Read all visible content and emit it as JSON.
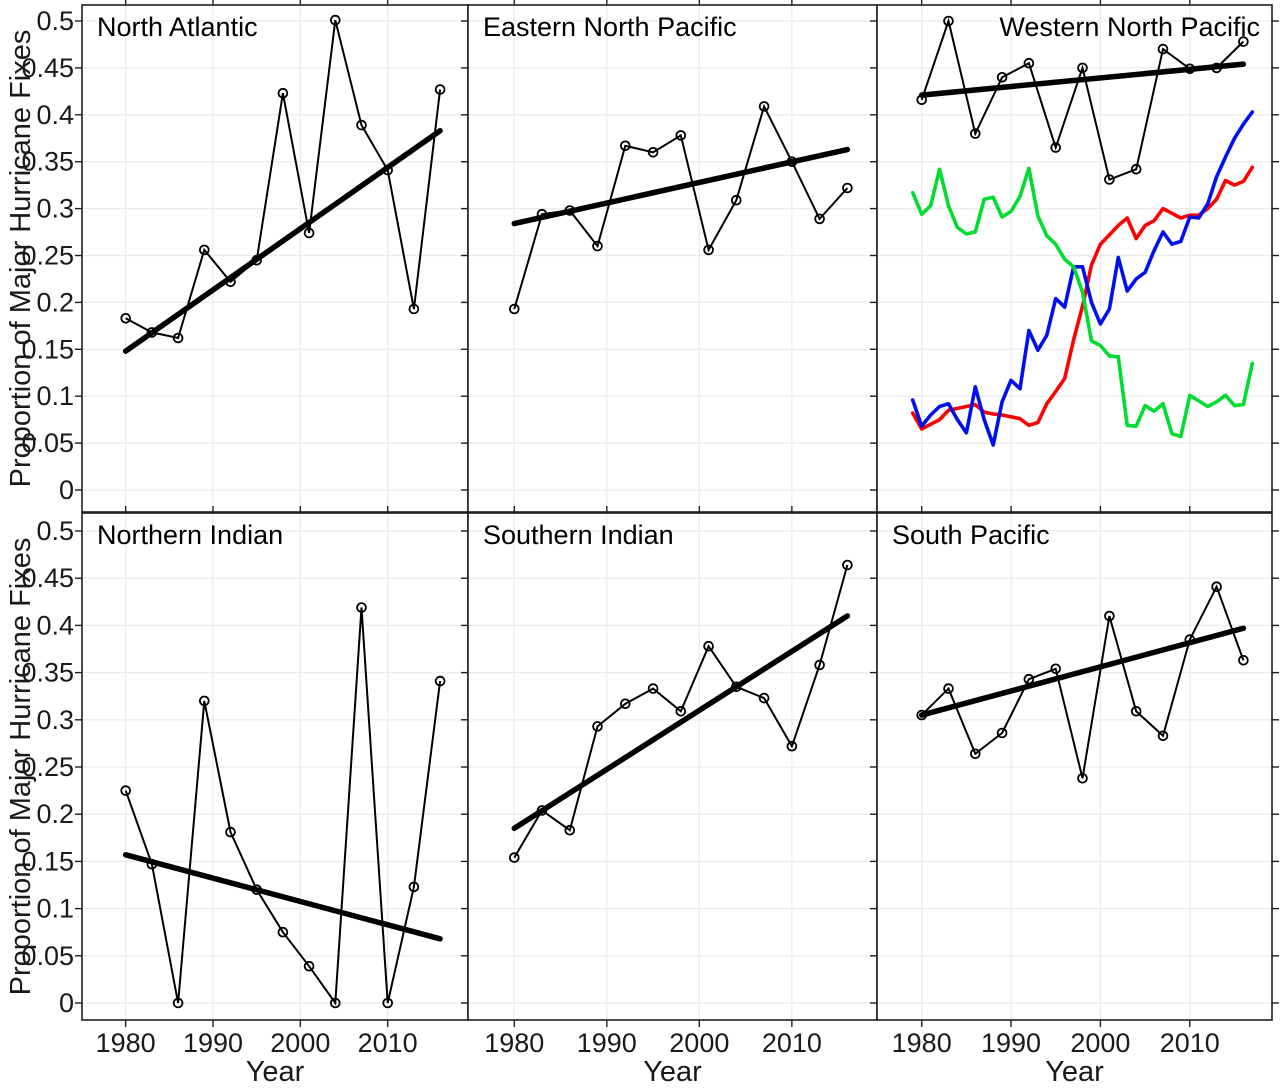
{
  "figure": {
    "background": "#ffffff"
  },
  "colors": {
    "grid": "#ececec",
    "axis": "#1f1f1f",
    "series_black": "#000000",
    "trend_black": "#000000",
    "red": "#ff0000",
    "blue": "#0010ee",
    "green": "#00dd30"
  },
  "axes": {
    "ylabel": "Proportion of Major Hurricane Fixes",
    "xlabel": "Year",
    "xlim": [
      1975,
      2019.2
    ],
    "ylim": [
      -0.02,
      0.52
    ],
    "grid": "on",
    "legend": "none",
    "yticks": [
      0,
      0.05,
      0.1,
      0.15,
      0.2,
      0.25,
      0.3,
      0.35,
      0.4,
      0.45,
      0.5
    ],
    "ytick_labels": [
      "0",
      "0.05",
      "0.1",
      "0.15",
      "0.2",
      "0.25",
      "0.3",
      "0.35",
      "0.4",
      "0.45",
      "0.5"
    ],
    "xticks": [
      1980,
      1990,
      2000,
      2010
    ],
    "xtick_labels": [
      "1980",
      "1990",
      "2000",
      "2010"
    ]
  },
  "chart_data": [
    {
      "type": "line",
      "title": "North Atlantic",
      "row": 1,
      "col": 1,
      "title_align": "left",
      "marker": "open-circle",
      "x": [
        1980,
        1983,
        1986,
        1989,
        1992,
        1995,
        1998,
        2001,
        2004,
        2007,
        2010,
        2013,
        2016
      ],
      "values": [
        0.183,
        0.168,
        0.162,
        0.256,
        0.222,
        0.245,
        0.423,
        0.274,
        0.501,
        0.389,
        0.341,
        0.193,
        0.427
      ],
      "trend": {
        "x": [
          1980,
          2016
        ],
        "values": [
          0.148,
          0.383
        ]
      }
    },
    {
      "type": "line",
      "title": "Eastern North Pacific",
      "row": 1,
      "col": 2,
      "title_align": "left",
      "marker": "open-circle",
      "x": [
        1980,
        1983,
        1986,
        1989,
        1992,
        1995,
        1998,
        2001,
        2004,
        2007,
        2010,
        2013,
        2016
      ],
      "values": [
        0.193,
        0.294,
        0.298,
        0.26,
        0.367,
        0.36,
        0.378,
        0.256,
        0.309,
        0.409,
        0.35,
        0.289,
        0.322
      ],
      "trend": {
        "x": [
          1980,
          2016
        ],
        "values": [
          0.284,
          0.363
        ]
      }
    },
    {
      "type": "line",
      "title": "Western North Pacific",
      "row": 1,
      "col": 3,
      "title_align": "right",
      "marker": "open-circle",
      "x": [
        1980,
        1983,
        1986,
        1989,
        1992,
        1995,
        1998,
        2001,
        2004,
        2007,
        2010,
        2013,
        2016
      ],
      "values": [
        0.416,
        0.5,
        0.38,
        0.44,
        0.455,
        0.365,
        0.45,
        0.331,
        0.342,
        0.47,
        0.449,
        0.45,
        0.478
      ],
      "trend": {
        "x": [
          1980,
          2016
        ],
        "values": [
          0.421,
          0.454
        ]
      },
      "extra_series": [
        {
          "name": "red-series",
          "color": "red",
          "x_start": 1979,
          "x_step": 1,
          "values": [
            0.082,
            0.065,
            0.07,
            0.075,
            0.085,
            0.087,
            0.089,
            0.091,
            0.083,
            0.081,
            0.08,
            0.078,
            0.076,
            0.069,
            0.072,
            0.092,
            0.105,
            0.119,
            0.16,
            0.196,
            0.24,
            0.262,
            0.272,
            0.282,
            0.29,
            0.268,
            0.282,
            0.287,
            0.3,
            0.295,
            0.29,
            0.293,
            0.293,
            0.3,
            0.31,
            0.33,
            0.325,
            0.329,
            0.344
          ]
        },
        {
          "name": "blue-series",
          "color": "blue",
          "x_start": 1979,
          "x_step": 1,
          "values": [
            0.096,
            0.068,
            0.08,
            0.089,
            0.092,
            0.075,
            0.061,
            0.11,
            0.075,
            0.048,
            0.094,
            0.117,
            0.108,
            0.17,
            0.149,
            0.165,
            0.204,
            0.195,
            0.238,
            0.238,
            0.2,
            0.177,
            0.193,
            0.248,
            0.212,
            0.225,
            0.232,
            0.255,
            0.275,
            0.262,
            0.265,
            0.291,
            0.29,
            0.305,
            0.334,
            0.355,
            0.375,
            0.39,
            0.403
          ]
        },
        {
          "name": "green-series",
          "color": "green",
          "x_start": 1979,
          "x_step": 1,
          "values": [
            0.317,
            0.294,
            0.303,
            0.342,
            0.303,
            0.28,
            0.273,
            0.275,
            0.31,
            0.312,
            0.291,
            0.297,
            0.313,
            0.343,
            0.292,
            0.271,
            0.262,
            0.246,
            0.238,
            0.211,
            0.159,
            0.154,
            0.143,
            0.142,
            0.069,
            0.068,
            0.09,
            0.084,
            0.092,
            0.06,
            0.057,
            0.101,
            0.095,
            0.089,
            0.094,
            0.101,
            0.09,
            0.091,
            0.135
          ]
        }
      ]
    },
    {
      "type": "line",
      "title": "Northern Indian",
      "row": 2,
      "col": 1,
      "title_align": "left",
      "marker": "open-circle",
      "x": [
        1980,
        1983,
        1986,
        1989,
        1992,
        1995,
        1998,
        2001,
        2004,
        2007,
        2010,
        2013,
        2016
      ],
      "values": [
        0.225,
        0.147,
        0.0,
        0.32,
        0.181,
        0.12,
        0.075,
        0.039,
        0.0,
        0.419,
        0.0,
        0.123,
        0.341
      ],
      "trend": {
        "x": [
          1980,
          2016
        ],
        "values": [
          0.157,
          0.068
        ]
      }
    },
    {
      "type": "line",
      "title": "Southern Indian",
      "row": 2,
      "col": 2,
      "title_align": "left",
      "marker": "open-circle",
      "x": [
        1980,
        1983,
        1986,
        1989,
        1992,
        1995,
        1998,
        2001,
        2004,
        2007,
        2010,
        2013,
        2016
      ],
      "values": [
        0.154,
        0.204,
        0.183,
        0.293,
        0.317,
        0.333,
        0.309,
        0.378,
        0.335,
        0.323,
        0.272,
        0.358,
        0.464
      ],
      "trend": {
        "x": [
          1980,
          2016
        ],
        "values": [
          0.185,
          0.41
        ]
      }
    },
    {
      "type": "line",
      "title": "South Pacific",
      "row": 2,
      "col": 3,
      "title_align": "left",
      "marker": "open-circle",
      "x": [
        1980,
        1983,
        1986,
        1989,
        1992,
        1995,
        1998,
        2001,
        2004,
        2007,
        2010,
        2013,
        2016
      ],
      "values": [
        0.305,
        0.333,
        0.264,
        0.286,
        0.343,
        0.354,
        0.238,
        0.41,
        0.309,
        0.283,
        0.385,
        0.441,
        0.363
      ],
      "trend": {
        "x": [
          1980,
          2016
        ],
        "values": [
          0.305,
          0.397
        ]
      }
    }
  ]
}
